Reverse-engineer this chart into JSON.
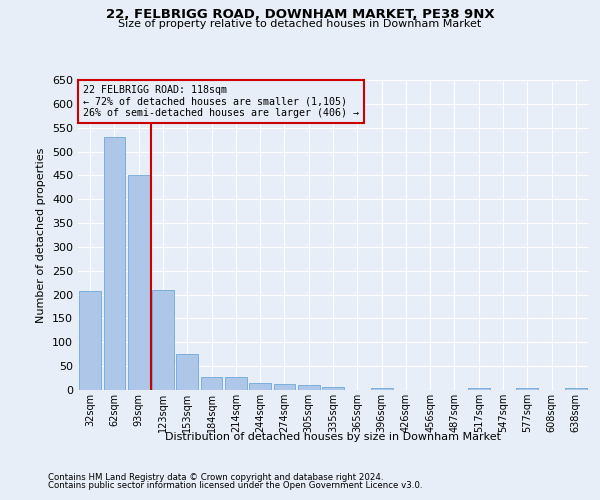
{
  "title_line1": "22, FELBRIGG ROAD, DOWNHAM MARKET, PE38 9NX",
  "title_line2": "Size of property relative to detached houses in Downham Market",
  "xlabel": "Distribution of detached houses by size in Downham Market",
  "ylabel": "Number of detached properties",
  "footnote1": "Contains HM Land Registry data © Crown copyright and database right 2024.",
  "footnote2": "Contains public sector information licensed under the Open Government Licence v3.0.",
  "annotation_title": "22 FELBRIGG ROAD: 118sqm",
  "annotation_line1": "← 72% of detached houses are smaller (1,105)",
  "annotation_line2": "26% of semi-detached houses are larger (406) →",
  "categories": [
    "32sqm",
    "62sqm",
    "93sqm",
    "123sqm",
    "153sqm",
    "184sqm",
    "214sqm",
    "244sqm",
    "274sqm",
    "305sqm",
    "335sqm",
    "365sqm",
    "396sqm",
    "426sqm",
    "456sqm",
    "487sqm",
    "517sqm",
    "547sqm",
    "577sqm",
    "608sqm",
    "638sqm"
  ],
  "values": [
    207,
    530,
    451,
    210,
    75,
    27,
    27,
    15,
    12,
    10,
    7,
    0,
    5,
    0,
    0,
    0,
    5,
    0,
    5,
    0,
    5
  ],
  "bar_color": "#aec6e8",
  "bar_edge_color": "#5a9fd4",
  "vline_color": "#cc0000",
  "vline_position": 2.5,
  "annotation_box_color": "#cc0000",
  "background_color": "#e8eef7",
  "ylim": [
    0,
    650
  ],
  "yticks": [
    0,
    50,
    100,
    150,
    200,
    250,
    300,
    350,
    400,
    450,
    500,
    550,
    600,
    650
  ]
}
